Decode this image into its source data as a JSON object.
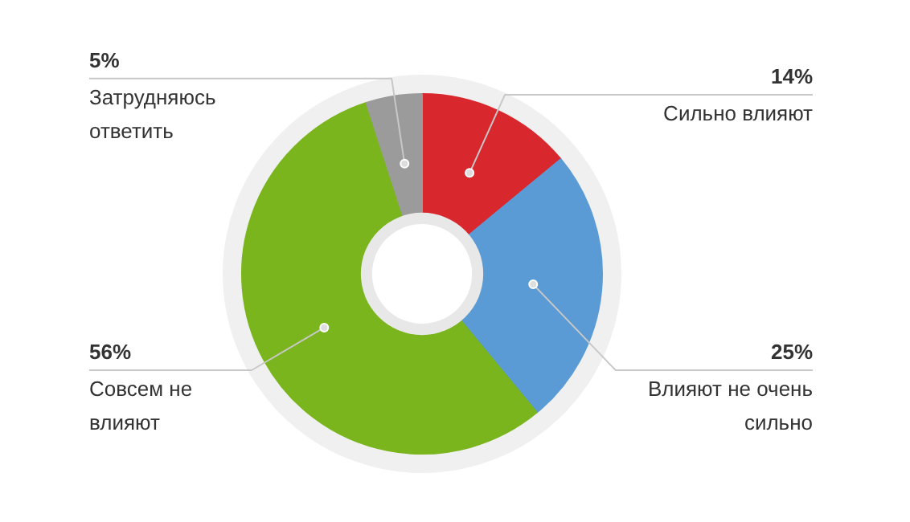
{
  "chart_data": {
    "type": "donut",
    "categories": [
      "Сильно влияют",
      "Влияют не очень сильно",
      "Совсем не влияют",
      "Затрудняюсь ответить"
    ],
    "values": [
      14,
      25,
      56,
      5
    ],
    "colors": [
      "#d9272e",
      "#5b9bd5",
      "#7ab51d",
      "#9b9b9b"
    ],
    "value_labels": [
      "14%",
      "25%",
      "56%",
      "5%"
    ]
  }
}
